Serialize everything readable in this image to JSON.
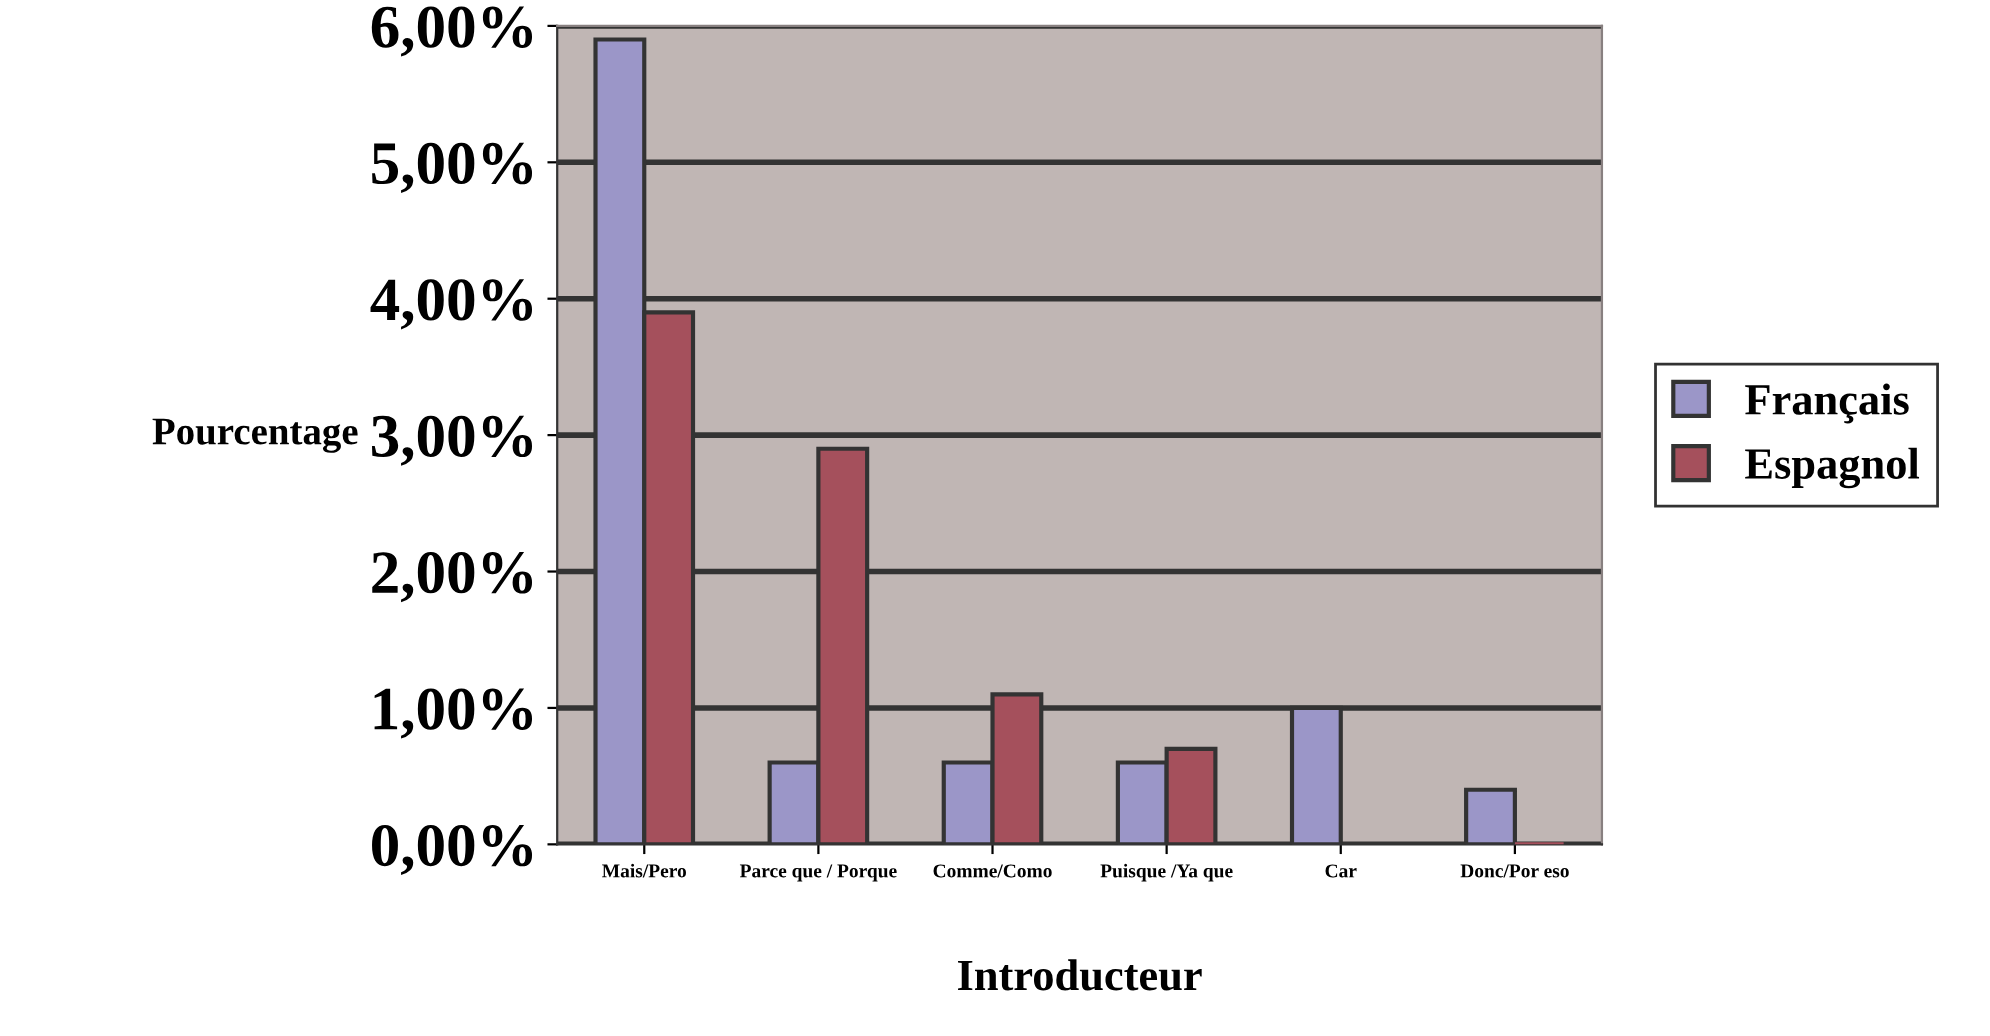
{
  "chart_data": {
    "type": "bar",
    "xlabel": "Introducteur",
    "ylabel": "Pourcentage",
    "categories": [
      "Mais/Pero",
      "Parce que / Porque",
      "Comme/Como",
      "Puisque /Ya que",
      "Car",
      "Donc/Por eso"
    ],
    "series": [
      {
        "name": "Français",
        "color": "#9b96c8",
        "values": [
          5.9,
          0.6,
          0.6,
          0.6,
          1.0,
          0.4
        ]
      },
      {
        "name": "Espagnol",
        "color": "#a5505c",
        "values": [
          3.9,
          2.9,
          1.1,
          0.7,
          null,
          0
        ]
      }
    ],
    "ylim": [
      0,
      6
    ],
    "yticks": [
      {
        "value": 0,
        "label": "0,00%"
      },
      {
        "value": 1,
        "label": "1,00%"
      },
      {
        "value": 2,
        "label": "2,00%"
      },
      {
        "value": 3,
        "label": "3,00%"
      },
      {
        "value": 4,
        "label": "4,00%"
      },
      {
        "value": 5,
        "label": "5,00%"
      },
      {
        "value": 6,
        "label": "6,00%"
      }
    ],
    "grid": "y",
    "legend": "right"
  }
}
